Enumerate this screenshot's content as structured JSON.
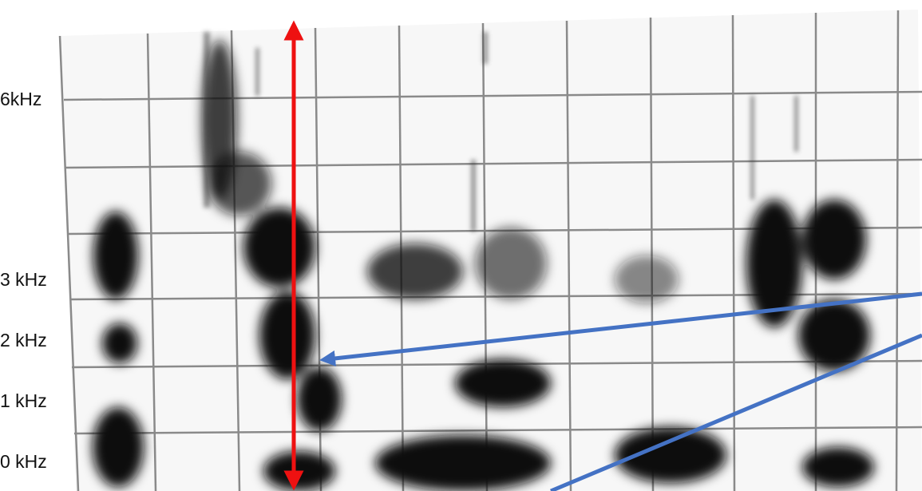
{
  "axis_labels": [
    "6kHz",
    "3 kHz",
    "2 kHz",
    "1 kHz",
    "0 kHz"
  ]
}
